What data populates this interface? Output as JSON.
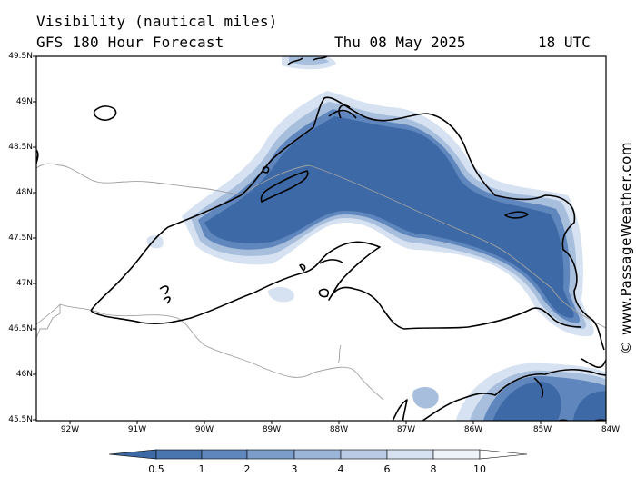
{
  "title": {
    "line1": "Visibility (nautical miles)",
    "line2": "GFS 180 Hour Forecast",
    "date": "Thu 08 May 2025",
    "time": "18 UTC"
  },
  "map": {
    "lat_labels": [
      "49.5N",
      "49N",
      "48.5N",
      "48N",
      "47.5N",
      "47N",
      "46.5N",
      "46N",
      "45.5N"
    ],
    "lon_labels": [
      "92W",
      "91W",
      "90W",
      "89W",
      "88W",
      "87W",
      "86W",
      "85W",
      "84W"
    ],
    "lat_range": [
      45.5,
      49.5
    ],
    "lon_range": [
      -92.5,
      -84
    ],
    "colors": {
      "fog_dark": "#3d6aa6",
      "fog_mid": "#5f87bd",
      "fog_light": "#a7bedd",
      "fog_faint": "#d6e2f1",
      "coast": "#000000",
      "border": "#a0a0a0"
    }
  },
  "colorbar": {
    "ticks": [
      "0.5",
      "1",
      "2",
      "3",
      "4",
      "6",
      "8",
      "10"
    ],
    "colors": [
      "#3d6aa6",
      "#4a76b0",
      "#5f87bd",
      "#7c9dca",
      "#9bb5d8",
      "#b9cbe5",
      "#d6e2f1",
      "#eef3f9",
      "#ffffff"
    ]
  },
  "watermark": "© www.PassageWeather.com"
}
